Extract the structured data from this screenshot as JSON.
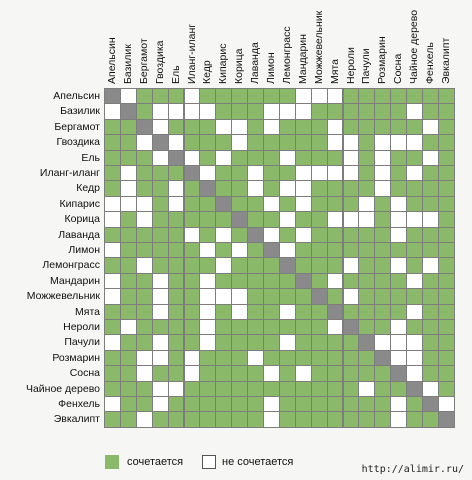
{
  "chart_data": {
    "type": "heatmap",
    "title": "",
    "oils": [
      "Апельсин",
      "Базилик",
      "Бергамот",
      "Гвоздика",
      "Ель",
      "Иланг-иланг",
      "Кедр",
      "Кипарис",
      "Корица",
      "Лаванда",
      "Лимон",
      "Лемонграсс",
      "Мандарин",
      "Можжевельник",
      "Мята",
      "Нероли",
      "Пачули",
      "Розмарин",
      "Сосна",
      "Чайное дерево",
      "Фенхель",
      "Эвкалипт"
    ],
    "matrix": [
      "X0111011111100011111111",
      "0X10000111000111111011",
      "11X0111001011101111101",
      "110X011101111100100011",
      "1110X01011101110101101",
      "10111X0110110000101011",
      "101101X110100111101111",
      "0001011X11010111010111",
      "01011111X1101100010001",
      "111110101X010111110111",
      "0111110101X01111111111",
      "11011110111X1110110101",
      "011011011111X101111011",
      "0110110001111X10111111",
      "11101101011011X1111011",
      "101111011111110X110111",
      "0110110111101111X00011",
      "11001011101111111X0011",
      "110110111101011111X011",
      "1110011111111111011X01",
      "01101111110111111101X0",
      "110111111101111111011X"
    ],
    "legend": [
      {
        "label": "сочетается",
        "color": "#8ab96a"
      },
      {
        "label": "не сочетается",
        "color": "#ffffff"
      }
    ],
    "diagonal_color": "#8a8a8a"
  },
  "watermark": "http://alimir.ru/"
}
